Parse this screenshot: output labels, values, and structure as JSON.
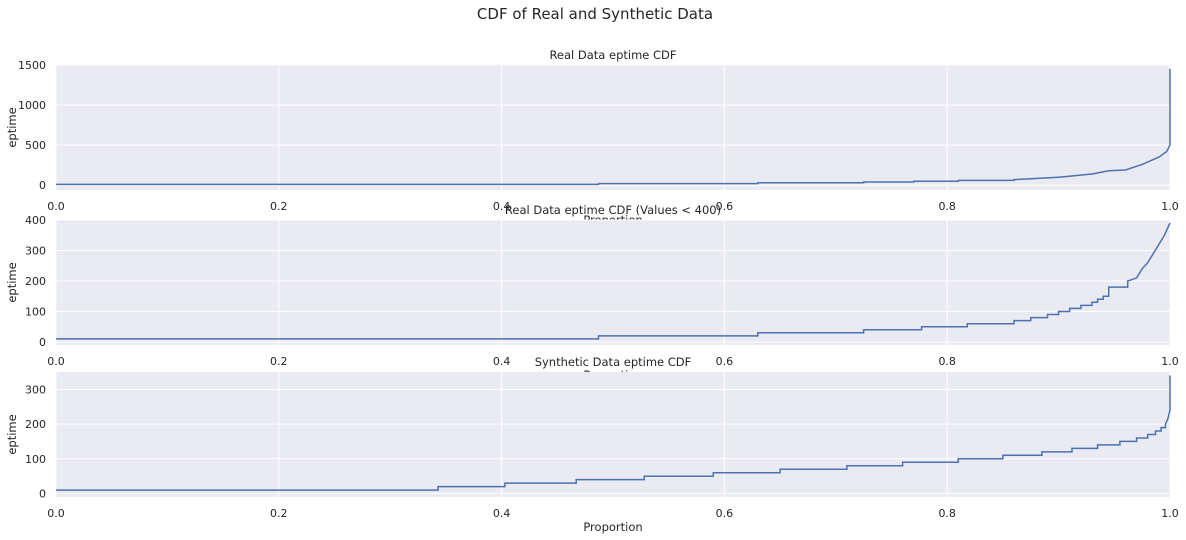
{
  "figure": {
    "title": "CDF of Real and Synthetic Data"
  },
  "colors": {
    "background": "#eaeaf2",
    "grid": "#ffffff",
    "line": "#4c72b0",
    "text": "#262626"
  },
  "chart_data": [
    {
      "type": "line",
      "title": "Real Data eptime CDF",
      "xlabel": "Proportion",
      "ylabel": "eptime",
      "xlim": [
        0,
        1
      ],
      "ylim": [
        -60,
        1500
      ],
      "x_ticks": [
        "0.0",
        "0.2",
        "0.4",
        "0.6",
        "0.8",
        "1.0"
      ],
      "y_ticks": [
        "0",
        "500",
        "1000",
        "1500"
      ],
      "grid": true,
      "series": [
        {
          "x": [
            0,
            0.487,
            0.487,
            0.63,
            0.63,
            0.725,
            0.725,
            0.77,
            0.77,
            0.81,
            0.81,
            0.86,
            0.86,
            0.9,
            0.93,
            0.945,
            0.96,
            0.975,
            0.99,
            0.997,
            1.0,
            1.0
          ],
          "y": [
            10,
            10,
            20,
            20,
            30,
            30,
            40,
            40,
            50,
            50,
            60,
            60,
            70,
            100,
            140,
            180,
            190,
            260,
            350,
            420,
            500,
            1450
          ]
        }
      ]
    },
    {
      "type": "line",
      "title": "Real Data eptime CDF (Values < 400)",
      "xlabel": "Proportion",
      "ylabel": "eptime",
      "xlim": [
        0,
        1
      ],
      "ylim": [
        -10,
        400
      ],
      "x_ticks": [
        "0.0",
        "0.2",
        "0.4",
        "0.6",
        "0.8",
        "1.0"
      ],
      "y_ticks": [
        "0",
        "100",
        "200",
        "300",
        "400"
      ],
      "grid": true,
      "series": [
        {
          "x": [
            0,
            0.487,
            0.487,
            0.63,
            0.63,
            0.725,
            0.725,
            0.777,
            0.777,
            0.818,
            0.818,
            0.86,
            0.86,
            0.875,
            0.875,
            0.89,
            0.89,
            0.9,
            0.9,
            0.91,
            0.91,
            0.92,
            0.92,
            0.93,
            0.93,
            0.935,
            0.935,
            0.94,
            0.94,
            0.945,
            0.945,
            0.962,
            0.962,
            0.97,
            0.975,
            0.98,
            0.985,
            0.99,
            0.995,
            1.0
          ],
          "y": [
            10,
            10,
            20,
            20,
            30,
            30,
            40,
            40,
            50,
            50,
            60,
            60,
            70,
            70,
            80,
            80,
            90,
            90,
            100,
            100,
            110,
            110,
            120,
            120,
            130,
            130,
            140,
            140,
            150,
            150,
            180,
            180,
            200,
            210,
            240,
            260,
            290,
            320,
            350,
            390
          ]
        }
      ]
    },
    {
      "type": "line",
      "title": "Synthetic Data eptime CDF",
      "xlabel": "Proportion",
      "ylabel": "eptime",
      "xlim": [
        0,
        1
      ],
      "ylim": [
        -10,
        350
      ],
      "x_ticks": [
        "0.0",
        "0.2",
        "0.4",
        "0.6",
        "0.8",
        "1.0"
      ],
      "y_ticks": [
        "0",
        "100",
        "200",
        "300"
      ],
      "grid": true,
      "series": [
        {
          "x": [
            0,
            0.343,
            0.343,
            0.403,
            0.403,
            0.467,
            0.467,
            0.528,
            0.528,
            0.59,
            0.59,
            0.65,
            0.65,
            0.71,
            0.71,
            0.76,
            0.76,
            0.81,
            0.81,
            0.85,
            0.85,
            0.885,
            0.885,
            0.912,
            0.912,
            0.935,
            0.935,
            0.955,
            0.955,
            0.97,
            0.97,
            0.98,
            0.98,
            0.987,
            0.987,
            0.992,
            0.992,
            0.996,
            0.996,
            0.998,
            1.0,
            1.0
          ],
          "y": [
            10,
            10,
            20,
            20,
            30,
            30,
            40,
            40,
            50,
            50,
            60,
            60,
            70,
            70,
            80,
            80,
            90,
            90,
            100,
            100,
            110,
            110,
            120,
            120,
            130,
            130,
            140,
            140,
            150,
            150,
            160,
            160,
            170,
            170,
            180,
            180,
            190,
            190,
            200,
            215,
            240,
            340
          ]
        }
      ]
    }
  ]
}
